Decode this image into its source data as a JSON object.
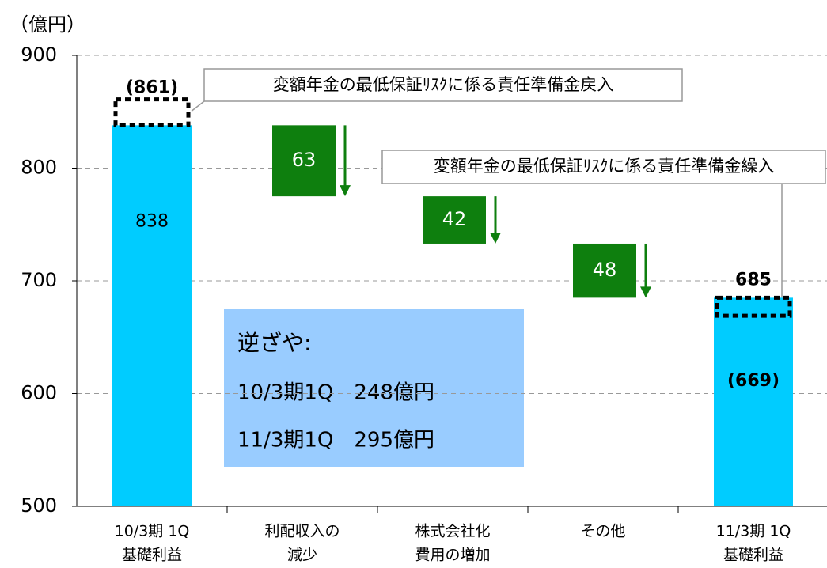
{
  "chart_data": {
    "type": "waterfall",
    "unit_label": "（億円）",
    "categories": [
      [
        "10/3期 1Q",
        "基礎利益"
      ],
      [
        "利配収入の",
        "減少"
      ],
      [
        "株式会社化",
        "費用の増加"
      ],
      [
        "その他"
      ],
      [
        "11/3期 1Q",
        "基礎利益"
      ]
    ],
    "kinds": [
      "total",
      "decrease",
      "decrease",
      "decrease",
      "total"
    ],
    "values": [
      838,
      63,
      42,
      48,
      685
    ],
    "alt_values": [
      861,
      null,
      null,
      null,
      669
    ],
    "alt_value_labels": [
      "(861)",
      null,
      null,
      null,
      "(669)"
    ],
    "total_color": "#00ccff",
    "decrease_color": "#0e7f0e",
    "ylim": [
      500,
      900
    ],
    "yticks": [
      500,
      600,
      700,
      800,
      900
    ],
    "grid": true,
    "annotations": [
      "変額年金の最低保証ﾘｽｸに係る責任準備金戻入",
      "変額年金の最低保証ﾘｽｸに係る責任準備金繰入"
    ],
    "note": {
      "title": "逆ざや:",
      "lines": [
        "10/3期1Q　248億円",
        "11/3期1Q　295億円"
      ]
    }
  }
}
